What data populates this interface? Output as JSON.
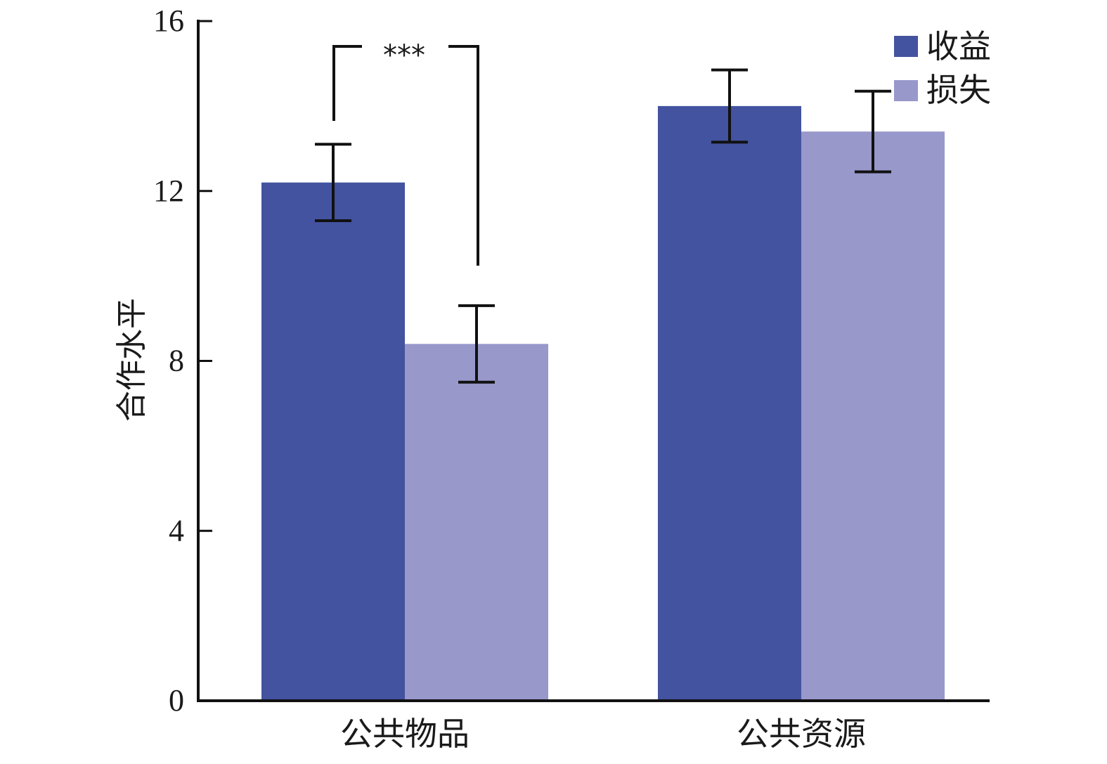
{
  "chart_data": {
    "type": "bar",
    "categories": [
      "公共物品",
      "公共资源"
    ],
    "series": [
      {
        "name": "收益",
        "color": "#4353a0",
        "values": [
          12.2,
          14.0
        ],
        "error": [
          0.9,
          0.85
        ]
      },
      {
        "name": "损失",
        "color": "#9898cb",
        "values": [
          8.4,
          13.4
        ],
        "error": [
          0.9,
          0.95
        ]
      }
    ],
    "ylabel": "合作水平",
    "xlabel": "",
    "ylim": [
      0,
      16
    ],
    "yticks": [
      0,
      4,
      8,
      12,
      16
    ],
    "yticks_labels": [
      "0",
      "4",
      "8",
      "12",
      "16"
    ],
    "grid": false,
    "legend_position": "top-right",
    "annotations": [
      {
        "text": "***",
        "between": [
          "公共物品/收益",
          "公共物品/损失"
        ]
      }
    ]
  }
}
